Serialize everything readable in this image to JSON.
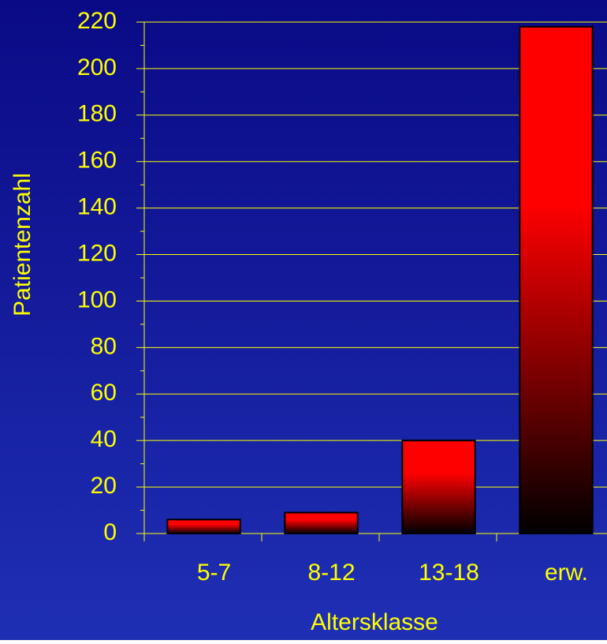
{
  "chart_data": {
    "type": "bar",
    "x_label": "Altersklasse",
    "y_label": "Patientenzahl",
    "categories": [
      "5-7",
      "8-12",
      "13-18",
      "erw."
    ],
    "values": [
      6,
      9,
      40,
      218
    ],
    "color": "#ff0000",
    "ylim": [
      0,
      220
    ],
    "yticks": [
      0,
      20,
      40,
      60,
      80,
      100,
      120,
      140,
      160,
      180,
      200,
      220
    ],
    "yminorticks": [
      10,
      30,
      50,
      70,
      90,
      110,
      130,
      150,
      170,
      190,
      210
    ],
    "grid": true
  }
}
